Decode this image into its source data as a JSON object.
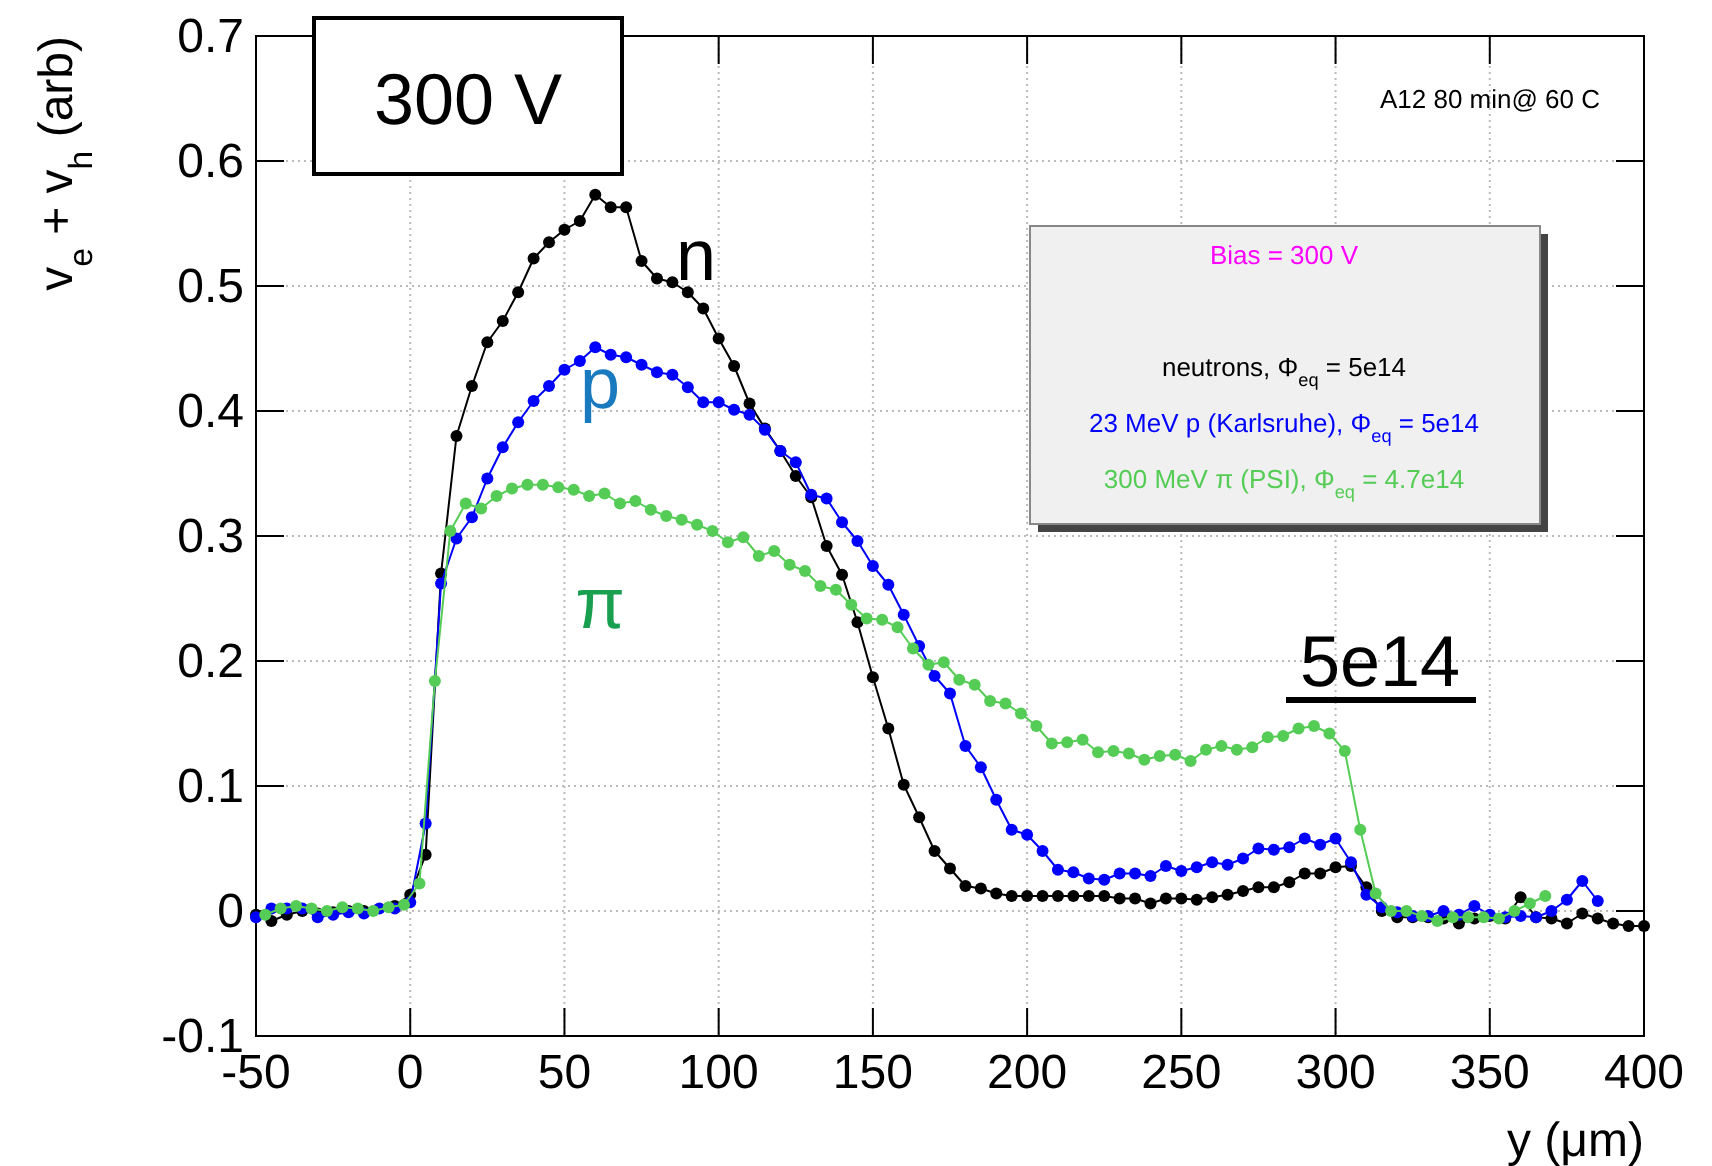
{
  "chart_data": {
    "type": "line",
    "xlabel": "y (μm)",
    "ylabel": "v$_{e}$ + v$_{h}$ (arb)",
    "legend_title": "Bias =  300 V",
    "xlim": [
      -50,
      400
    ],
    "ylim": [
      -0.1,
      0.7
    ],
    "xticks": [
      -50,
      0,
      50,
      100,
      150,
      200,
      250,
      300,
      350,
      400
    ],
    "yticks": [
      {
        "value": -0.1,
        "label": "-0.1"
      },
      0,
      {
        "value": 0.1,
        "label": "0.1"
      },
      {
        "value": 0.2,
        "label": "0.2"
      },
      {
        "value": 0.3,
        "label": "0.3"
      },
      {
        "value": 0.4,
        "label": "0.4"
      },
      {
        "value": 0.5,
        "label": "0.5"
      },
      {
        "value": 0.6,
        "label": "0.6"
      },
      {
        "value": 0.7,
        "label": "0.7"
      }
    ],
    "grid": true,
    "legend": "top right",
    "marker": "circle",
    "line_style": "solid",
    "annotations": [
      "300 V",
      "A12 80 min@ 60 C",
      "n",
      "p",
      "π",
      "5e14"
    ],
    "series": [
      {
        "name": "neutrons, Φ$_{eq}$ = 5e14",
        "color": "#000000",
        "x": [
          -50,
          -45,
          -40,
          -35,
          -30,
          -25,
          -20,
          -15,
          -10,
          -5,
          0,
          5,
          10,
          15,
          20,
          25,
          30,
          35,
          40,
          45,
          50,
          55,
          60,
          65,
          70,
          75,
          80,
          85,
          90,
          95,
          100,
          105,
          110,
          115,
          120,
          125,
          130,
          135,
          140,
          145,
          150,
          155,
          160,
          165,
          170,
          175,
          180,
          185,
          190,
          195,
          200,
          205,
          210,
          215,
          220,
          225,
          230,
          235,
          240,
          245,
          250,
          255,
          260,
          265,
          270,
          275,
          280,
          285,
          290,
          295,
          300,
          305,
          310,
          315,
          320,
          325,
          330,
          335,
          340,
          345,
          350,
          355,
          360,
          365,
          370,
          375,
          380,
          385,
          390,
          395,
          400
        ],
        "values": [
          -0.003,
          -0.008,
          -0.003,
          0.0,
          -0.002,
          -0.001,
          0.0,
          0.0,
          null,
          0.004,
          0.013,
          0.045,
          0.27,
          0.38,
          0.42,
          0.455,
          0.472,
          0.495,
          0.522,
          0.535,
          0.545,
          0.552,
          0.573,
          0.563,
          0.563,
          0.52,
          0.506,
          0.503,
          0.495,
          0.482,
          0.458,
          0.436,
          0.406,
          0.386,
          0.368,
          0.348,
          0.331,
          0.292,
          0.269,
          0.231,
          0.187,
          0.146,
          0.101,
          0.075,
          0.048,
          0.034,
          0.02,
          0.018,
          0.014,
          0.012,
          0.012,
          0.012,
          0.012,
          0.012,
          0.012,
          0.012,
          0.01,
          0.01,
          0.006,
          0.01,
          0.01,
          0.009,
          0.011,
          0.013,
          0.016,
          0.019,
          0.019,
          0.023,
          0.03,
          0.03,
          0.035,
          0.036,
          0.019,
          0.0,
          -0.005,
          -0.005,
          -0.005,
          -0.006,
          -0.01,
          -0.006,
          -0.004,
          -0.006,
          0.011,
          -0.005,
          -0.006,
          -0.01,
          -0.002,
          -0.006,
          -0.01,
          -0.012,
          -0.012
        ]
      },
      {
        "name": "23 MeV p (Karlsruhe), Φ$_{eq}$ = 5e14",
        "color": "#0000ff",
        "x": [
          -50,
          -45,
          -40,
          -35,
          -30,
          -25,
          -20,
          -15,
          -10,
          -5,
          0,
          5,
          10,
          15,
          20,
          25,
          30,
          35,
          40,
          45,
          50,
          55,
          60,
          65,
          70,
          75,
          80,
          85,
          90,
          95,
          100,
          105,
          110,
          115,
          120,
          125,
          130,
          135,
          140,
          145,
          150,
          155,
          160,
          165,
          170,
          175,
          180,
          185,
          190,
          195,
          200,
          205,
          210,
          215,
          220,
          225,
          230,
          235,
          240,
          245,
          250,
          255,
          260,
          265,
          270,
          275,
          280,
          285,
          290,
          295,
          300,
          305,
          310,
          315,
          320,
          325,
          330,
          335,
          340,
          345,
          350,
          355,
          360,
          365,
          370,
          375,
          380,
          385
        ],
        "values": [
          -0.005,
          0.002,
          0.002,
          0.002,
          -0.005,
          -0.003,
          -0.001,
          -0.002,
          0.002,
          0.002,
          0.007,
          0.07,
          0.262,
          0.298,
          0.315,
          0.346,
          0.371,
          0.391,
          0.408,
          0.42,
          0.433,
          0.44,
          0.451,
          0.445,
          0.443,
          0.437,
          0.431,
          0.429,
          0.419,
          0.407,
          0.407,
          0.401,
          0.397,
          0.385,
          0.368,
          0.359,
          0.333,
          0.33,
          0.311,
          0.296,
          0.276,
          0.261,
          0.237,
          0.212,
          0.188,
          0.174,
          0.132,
          0.115,
          0.089,
          0.065,
          0.061,
          0.048,
          0.033,
          0.031,
          0.026,
          0.025,
          0.03,
          0.03,
          0.028,
          0.036,
          0.032,
          0.035,
          0.039,
          0.037,
          0.042,
          0.05,
          0.049,
          0.051,
          0.058,
          0.053,
          0.058,
          0.039,
          0.013,
          0.003,
          -0.001,
          -0.004,
          -0.004,
          0.0,
          -0.003,
          0.004,
          -0.003,
          -0.005,
          -0.004,
          -0.005,
          0.0,
          0.009,
          0.024,
          0.008
        ]
      },
      {
        "name": "300 MeV π (PSI), Φ$_{eq}$ = 4.7e14",
        "color": "#55cc55",
        "x": [
          -47,
          -42,
          -37,
          -32,
          -27,
          -22,
          -17,
          -12,
          -7,
          -2,
          3,
          8,
          13,
          18,
          23,
          28,
          33,
          38,
          43,
          48,
          53,
          58,
          63,
          68,
          73,
          78,
          83,
          88,
          93,
          98,
          103,
          108,
          113,
          118,
          123,
          128,
          133,
          138,
          143,
          148,
          153,
          158,
          163,
          168,
          173,
          178,
          183,
          188,
          193,
          198,
          203,
          208,
          213,
          218,
          223,
          228,
          233,
          238,
          243,
          248,
          253,
          258,
          263,
          268,
          273,
          278,
          283,
          288,
          293,
          298,
          303,
          308,
          313,
          318,
          323,
          328,
          333,
          338,
          343,
          348,
          353,
          358,
          363,
          368
        ],
        "values": [
          -0.003,
          0.002,
          0.004,
          0.002,
          0.0,
          0.003,
          0.002,
          0.0,
          0.003,
          0.005,
          0.022,
          0.184,
          0.304,
          0.326,
          0.322,
          0.332,
          0.338,
          0.341,
          0.341,
          0.339,
          0.337,
          0.332,
          0.334,
          0.326,
          0.328,
          0.321,
          0.316,
          0.313,
          0.309,
          0.304,
          0.295,
          0.299,
          0.284,
          0.288,
          0.277,
          0.272,
          0.26,
          0.257,
          0.245,
          0.234,
          0.233,
          0.227,
          0.21,
          0.197,
          0.199,
          0.185,
          0.181,
          0.168,
          0.166,
          0.158,
          0.148,
          0.134,
          0.135,
          0.137,
          0.127,
          0.128,
          0.126,
          0.121,
          0.124,
          0.125,
          0.12,
          0.129,
          0.132,
          0.129,
          0.131,
          0.139,
          0.14,
          0.146,
          0.148,
          0.142,
          0.128,
          0.065,
          0.014,
          0.0,
          0.0,
          -0.004,
          -0.008,
          -0.005,
          -0.005,
          -0.005,
          -0.006,
          0.0,
          0.006,
          0.012
        ]
      }
    ]
  }
}
